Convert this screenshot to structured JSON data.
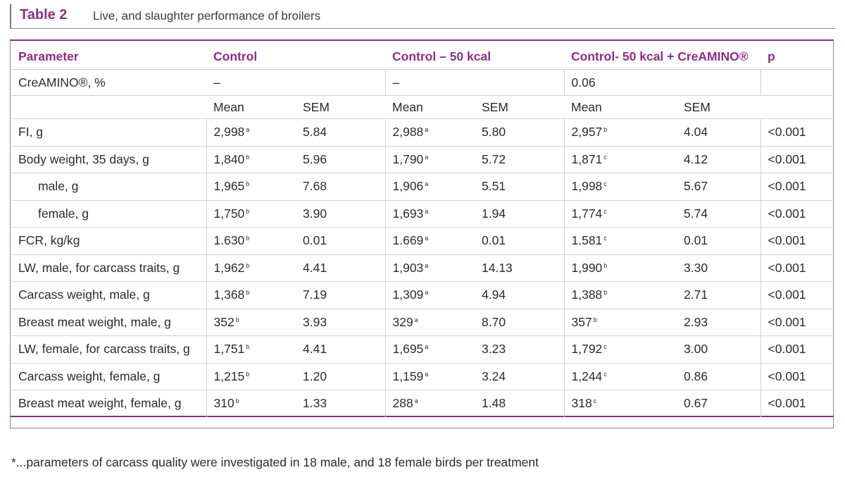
{
  "caption": {
    "number": "Table 2",
    "title": "Live, and slaughter performance of broilers"
  },
  "headers": {
    "parameter": "Parameter",
    "control": "Control",
    "control50": "Control – 50 kcal",
    "control50cre": "Control- 50 kcal + CreAMINO®",
    "p": "p"
  },
  "creamino_row": {
    "label": "CreAMINO®, %",
    "control": "–",
    "control50": "–",
    "control50cre": "0.06"
  },
  "subheaders": {
    "mean": "Mean",
    "sem": "SEM"
  },
  "rows": [
    {
      "label": "FI, g",
      "c_mean": "2,998",
      "c_sup": "a",
      "c_sem": "5.84",
      "m_mean": "2,988",
      "m_sup": "a",
      "m_sem": "5.80",
      "x_mean": "2,957",
      "x_sup": "b",
      "x_sem": "4.04",
      "p": "<0.001"
    },
    {
      "label": "Body weight, 35 days, g",
      "c_mean": "1,840",
      "c_sup": "b",
      "c_sem": "5.96",
      "m_mean": "1,790",
      "m_sup": "a",
      "m_sem": "5.72",
      "x_mean": "1,871",
      "x_sup": "c",
      "x_sem": "4.12",
      "p": "<0.001"
    },
    {
      "label": "male, g",
      "c_mean": "1,965",
      "c_sup": "b",
      "c_sem": "7.68",
      "m_mean": "1,906",
      "m_sup": "a",
      "m_sem": "5.51",
      "x_mean": "1,998",
      "x_sup": "c",
      "x_sem": "5.67",
      "p": "<0.001"
    },
    {
      "label": "female, g",
      "c_mean": "1,750",
      "c_sup": "b",
      "c_sem": "3.90",
      "m_mean": "1,693",
      "m_sup": "a",
      "m_sem": "1.94",
      "x_mean": "1,774",
      "x_sup": "c",
      "x_sem": "5.74",
      "p": "<0.001"
    },
    {
      "label": "FCR, kg/kg",
      "c_mean": "1.630",
      "c_sup": "b",
      "c_sem": "0.01",
      "m_mean": "1.669",
      "m_sup": "a",
      "m_sem": "0.01",
      "x_mean": "1.581",
      "x_sup": "c",
      "x_sem": "0.01",
      "p": "<0.001"
    },
    {
      "label": "LW, male, for carcass traits, g",
      "c_mean": "1,962",
      "c_sup": "b",
      "c_sem": "4.41",
      "m_mean": "1,903",
      "m_sup": "a",
      "m_sem": "14.13",
      "x_mean": "1,990",
      "x_sup": "b",
      "x_sem": "3.30",
      "p": "<0.001"
    },
    {
      "label": "Carcass weight, male, g",
      "c_mean": "1,368",
      "c_sup": "b",
      "c_sem": "7.19",
      "m_mean": "1,309",
      "m_sup": "a",
      "m_sem": "4.94",
      "x_mean": "1,388",
      "x_sup": "b",
      "x_sem": "2.71",
      "p": "<0.001"
    },
    {
      "label": "Breast meat weight, male, g",
      "c_mean": "352",
      "c_sup": "b",
      "c_sem": "3.93",
      "m_mean": "329",
      "m_sup": "a",
      "m_sem": "8.70",
      "x_mean": "357",
      "x_sup": "b",
      "x_sem": "2.93",
      "p": "<0.001"
    },
    {
      "label": "LW, female, for carcass traits, g",
      "c_mean": "1,751",
      "c_sup": "b",
      "c_sem": "4.41",
      "m_mean": "1,695",
      "m_sup": "a",
      "m_sem": "3.23",
      "x_mean": "1,792",
      "x_sup": "c",
      "x_sem": "3.00",
      "p": "<0.001"
    },
    {
      "label": "Carcass weight, female, g",
      "c_mean": "1,215",
      "c_sup": "b",
      "c_sem": "1.20",
      "m_mean": "1,159",
      "m_sup": "a",
      "m_sem": "3.24",
      "x_mean": "1,244",
      "x_sup": "c",
      "x_sem": "0.86",
      "p": "<0.001"
    },
    {
      "label": "Breast meat weight, female, g",
      "c_mean": "310",
      "c_sup": "b",
      "c_sem": "1.33",
      "m_mean": "288",
      "m_sup": "a",
      "m_sem": "1.48",
      "x_mean": "318",
      "x_sup": "c",
      "x_sem": "0.67",
      "p": "<0.001"
    }
  ],
  "footnote": "*...parameters of carcass quality were investigated in 18 male, and 18 female birds per treatment"
}
